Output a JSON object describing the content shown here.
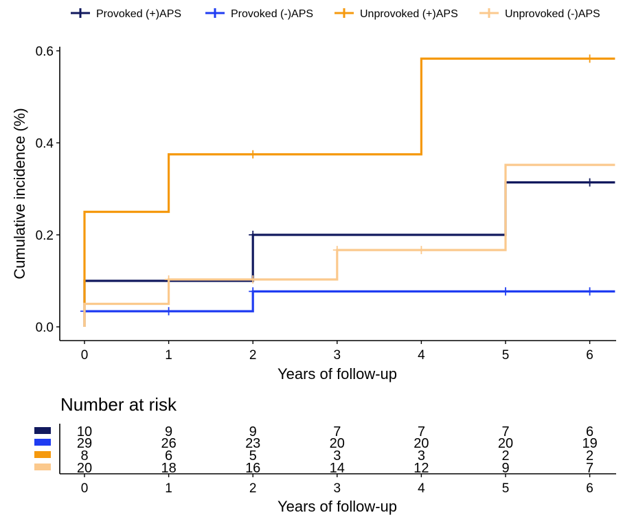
{
  "chart_data": [
    {
      "type": "line",
      "step": true,
      "xlabel": "Years of follow-up",
      "ylabel": "Cumulative incidence (%)",
      "xlim": [
        0,
        6.3
      ],
      "ylim": [
        0,
        0.6
      ],
      "x_ticks": [
        0,
        1,
        2,
        3,
        4,
        5,
        6
      ],
      "y_ticks": [
        0.0,
        0.2,
        0.4,
        0.6
      ],
      "y_tick_labels": [
        "0.0",
        "0.2",
        "0.4",
        "0.6"
      ],
      "legend_position": "top",
      "series": [
        {
          "name": "Provoked (+)APS",
          "color": "#11195e",
          "steps": [
            [
              0,
              0.0
            ],
            [
              0,
              0.1
            ],
            [
              2,
              0.2
            ],
            [
              5,
              0.314
            ],
            [
              6.3,
              0.314
            ]
          ],
          "censor_marks": [
            [
              2,
              0.2
            ],
            [
              6,
              0.314
            ]
          ]
        },
        {
          "name": "Provoked (-)APS",
          "color": "#1f3cf2",
          "steps": [
            [
              0,
              0.034
            ],
            [
              2,
              0.077
            ],
            [
              6.3,
              0.077
            ]
          ],
          "censor_marks": [
            [
              0,
              0.034
            ],
            [
              1,
              0.034
            ],
            [
              2,
              0.077
            ],
            [
              5,
              0.077
            ],
            [
              6,
              0.077
            ]
          ]
        },
        {
          "name": "Unprovoked (+)APS",
          "color": "#f5990e",
          "steps": [
            [
              0,
              0.0
            ],
            [
              0,
              0.25
            ],
            [
              1,
              0.375
            ],
            [
              4,
              0.583
            ],
            [
              6.3,
              0.583
            ]
          ],
          "censor_marks": [
            [
              2,
              0.375
            ],
            [
              6,
              0.583
            ]
          ]
        },
        {
          "name": "Unprovoked (-)APS",
          "color": "#fbc98d",
          "steps": [
            [
              0,
              0.0
            ],
            [
              0,
              0.05
            ],
            [
              1,
              0.103
            ],
            [
              3,
              0.167
            ],
            [
              5,
              0.352
            ],
            [
              6.3,
              0.352
            ]
          ],
          "censor_marks": [
            [
              1,
              0.103
            ],
            [
              2,
              0.103
            ],
            [
              3,
              0.167
            ],
            [
              4,
              0.167
            ]
          ]
        }
      ]
    },
    {
      "type": "table",
      "title": "Number at risk",
      "xlabel": "Years of follow-up",
      "x_ticks": [
        0,
        1,
        2,
        3,
        4,
        5,
        6
      ],
      "rows": [
        {
          "color": "#11195e",
          "values": [
            10,
            9,
            9,
            7,
            7,
            7,
            6
          ]
        },
        {
          "color": "#1f3cf2",
          "values": [
            29,
            26,
            23,
            20,
            20,
            20,
            19
          ]
        },
        {
          "color": "#f5990e",
          "values": [
            8,
            6,
            5,
            3,
            3,
            2,
            2
          ]
        },
        {
          "color": "#fbc98d",
          "values": [
            20,
            18,
            16,
            14,
            12,
            9,
            7
          ]
        }
      ]
    }
  ]
}
